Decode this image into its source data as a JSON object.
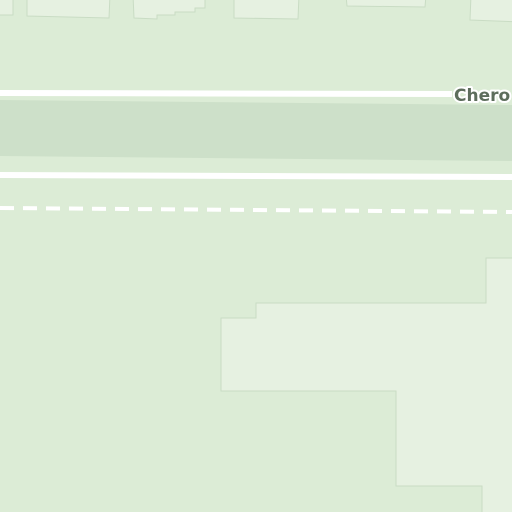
{
  "map": {
    "streets": [
      {
        "name": "Chero",
        "kind": "road-label"
      }
    ],
    "colors": {
      "land": "#dcecd6",
      "median": "#cde0c9",
      "building": "#e6f1e1",
      "building_outline": "#c9dcc4",
      "road": "#ffffff",
      "label_text": "#5d6d5c"
    },
    "features": {
      "median_strip": "divided-road-median",
      "dashed_line": "dashed-path",
      "buildings": "building-footprints"
    }
  }
}
